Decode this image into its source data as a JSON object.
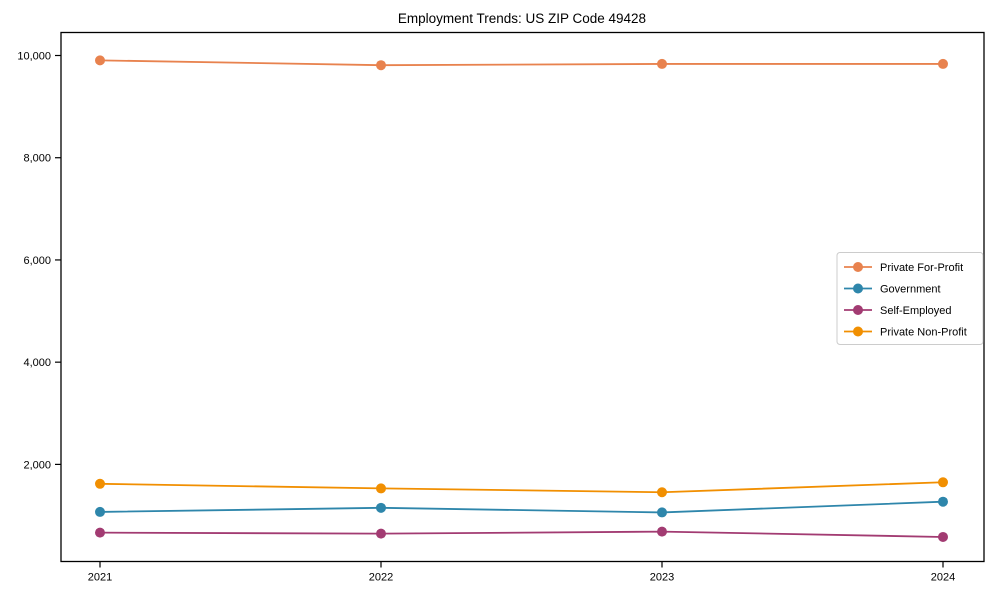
{
  "chart_data": {
    "type": "line",
    "title": "Employment Trends: US ZIP Code 49428",
    "xlabel": "",
    "ylabel": "",
    "categories": [
      "2021",
      "2022",
      "2023",
      "2024"
    ],
    "series": [
      {
        "name": "Private For-Profit",
        "color": "#E8824E",
        "values": [
          9905,
          9810,
          9835,
          9835
        ]
      },
      {
        "name": "Government",
        "color": "#2E86AB",
        "values": [
          1070,
          1150,
          1060,
          1270
        ]
      },
      {
        "name": "Self-Employed",
        "color": "#A23B72",
        "values": [
          665,
          645,
          685,
          580
        ]
      },
      {
        "name": "Private Non-Profit",
        "color": "#F18F01",
        "values": [
          1620,
          1530,
          1455,
          1650
        ]
      }
    ],
    "yticks": [
      2000,
      4000,
      6000,
      8000,
      10000
    ],
    "ytick_labels": [
      "2,000",
      "4,000",
      "6,000",
      "8,000",
      "10,000"
    ],
    "ylim": [
      100,
      10450
    ],
    "grid": false,
    "legend_position": "center-right",
    "marker": "circle",
    "axis_color": "#000000",
    "legend_border_color": "#cccccc",
    "background_color": "#ffffff"
  }
}
